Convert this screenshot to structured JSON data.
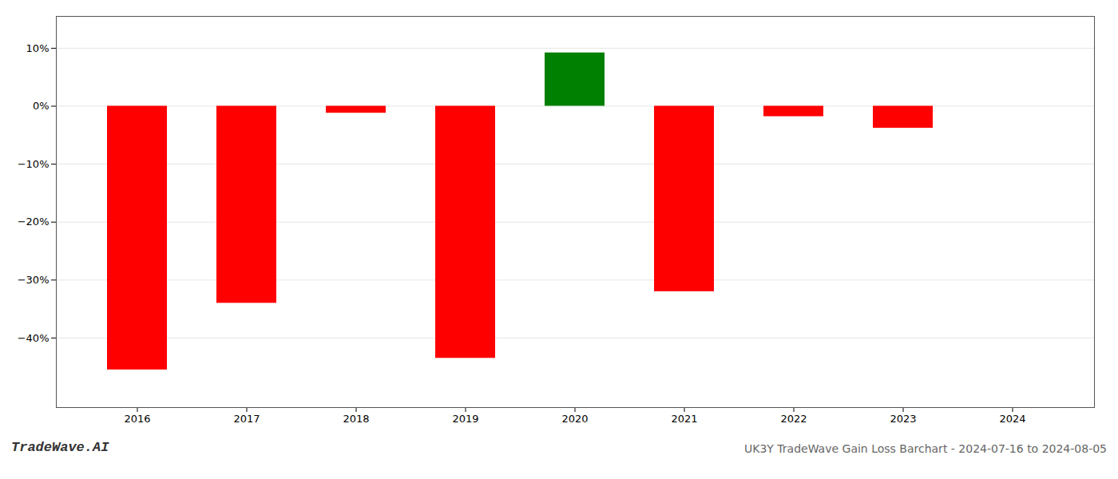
{
  "chart_data": {
    "type": "bar",
    "title": "UK3Y TradeWave Gain Loss Barchart - 2024-07-16 to 2024-08-05",
    "annotations": [
      "TradeWave.AI"
    ],
    "categories": [
      "2016",
      "2017",
      "2018",
      "2019",
      "2020",
      "2021",
      "2022",
      "2023",
      "2024"
    ],
    "values": [
      -0.455,
      -0.34,
      -0.012,
      -0.435,
      0.092,
      -0.32,
      -0.018,
      -0.038,
      0.0
    ],
    "colors": [
      "#ff0000",
      "#ff0000",
      "#ff0000",
      "#ff0000",
      "#008000",
      "#ff0000",
      "#ff0000",
      "#ff0000",
      null
    ],
    "ylim": [
      -0.52,
      0.155
    ],
    "yticks": [
      {
        "value": -0.4,
        "label": "−40%"
      },
      {
        "value": -0.3,
        "label": "−30%"
      },
      {
        "value": -0.2,
        "label": "−20%"
      },
      {
        "value": -0.1,
        "label": "−10%"
      },
      {
        "value": 0.0,
        "label": "0%"
      },
      {
        "value": 0.1,
        "label": "10%"
      }
    ],
    "grid": true
  }
}
